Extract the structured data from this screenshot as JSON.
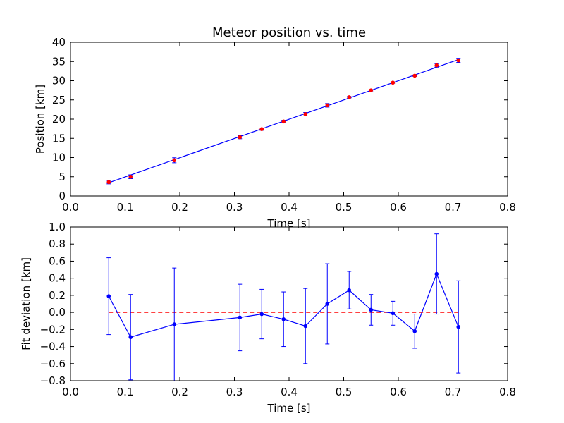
{
  "chart_data": [
    {
      "type": "scatter",
      "title": "Meteor position vs. time",
      "xlabel": "Time [s]",
      "ylabel": "Position [km]",
      "xlim": [
        0.0,
        0.8
      ],
      "ylim": [
        0,
        40
      ],
      "xticks": [
        "0.0",
        "0.1",
        "0.2",
        "0.3",
        "0.4",
        "0.5",
        "0.6",
        "0.7",
        "0.8"
      ],
      "yticks": [
        "0",
        "5",
        "10",
        "15",
        "20",
        "25",
        "30",
        "35",
        "40"
      ],
      "grid": false,
      "colors": {
        "points": "#ff0000",
        "errorbars": "#0000ff",
        "fit": "#0000ff"
      },
      "points": {
        "x": [
          0.07,
          0.11,
          0.19,
          0.31,
          0.35,
          0.39,
          0.43,
          0.47,
          0.51,
          0.55,
          0.59,
          0.63,
          0.67,
          0.71
        ],
        "y": [
          3.6,
          5.0,
          9.3,
          15.3,
          17.4,
          19.4,
          21.3,
          23.6,
          25.7,
          27.5,
          29.5,
          31.3,
          34.0,
          35.3
        ],
        "yerr": [
          0.45,
          0.5,
          0.65,
          0.4,
          0.3,
          0.32,
          0.44,
          0.47,
          0.22,
          0.17,
          0.14,
          0.2,
          0.47,
          0.54
        ]
      },
      "fit_line": {
        "x": [
          0.07,
          0.71
        ],
        "y": [
          3.45,
          35.5
        ]
      }
    },
    {
      "type": "line",
      "xlabel": "Time [s]",
      "ylabel": "Fit deviation [km]",
      "xlim": [
        0.0,
        0.8
      ],
      "ylim": [
        -0.8,
        1.0
      ],
      "xticks": [
        "0.0",
        "0.1",
        "0.2",
        "0.3",
        "0.4",
        "0.5",
        "0.6",
        "0.7",
        "0.8"
      ],
      "yticks": [
        "−0.8",
        "−0.6",
        "−0.4",
        "−0.2",
        "0.0",
        "0.2",
        "0.4",
        "0.6",
        "0.8",
        "1.0"
      ],
      "grid": false,
      "colors": {
        "series": "#0000ff",
        "zero_line": "#ff0000"
      },
      "series": {
        "x": [
          0.07,
          0.11,
          0.19,
          0.31,
          0.35,
          0.39,
          0.43,
          0.47,
          0.51,
          0.55,
          0.59,
          0.63,
          0.67,
          0.71
        ],
        "y": [
          0.19,
          -0.29,
          -0.14,
          -0.06,
          -0.02,
          -0.08,
          -0.16,
          0.1,
          0.26,
          0.03,
          -0.01,
          -0.22,
          0.45,
          -0.17
        ],
        "yerr": [
          0.45,
          0.5,
          0.66,
          0.39,
          0.29,
          0.32,
          0.44,
          0.47,
          0.22,
          0.18,
          0.14,
          0.2,
          0.47,
          0.54
        ]
      },
      "reference_line": {
        "y": 0.0,
        "x": [
          0.07,
          0.71
        ],
        "style": "dashed"
      }
    }
  ]
}
